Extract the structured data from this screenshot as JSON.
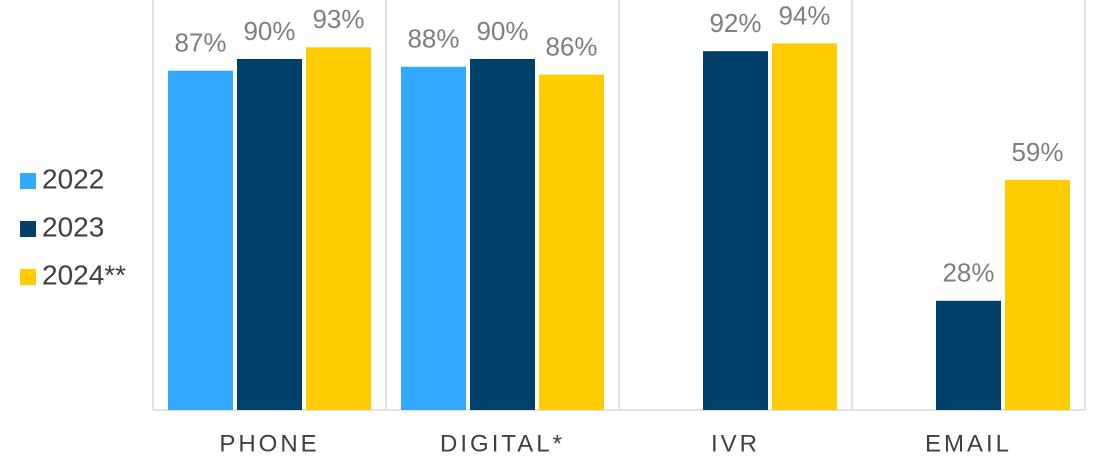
{
  "chart_data": {
    "type": "bar",
    "categories": [
      "PHONE",
      "DIGITAL*",
      "IVR",
      "EMAIL"
    ],
    "series": [
      {
        "name": "2022",
        "color": "#33a8ff",
        "values": [
          87,
          88,
          null,
          null
        ],
        "value_labels": [
          "87%",
          "88%",
          null,
          null
        ]
      },
      {
        "name": "2023",
        "color": "#00406b",
        "values": [
          90,
          90,
          92,
          28
        ],
        "value_labels": [
          "90%",
          "90%",
          "92%",
          "28%"
        ]
      },
      {
        "name": "2024**",
        "color": "#ffcc00",
        "values": [
          93,
          86,
          94,
          59
        ],
        "value_labels": [
          "93%",
          "86%",
          "94%",
          "59%"
        ]
      }
    ],
    "ylim": [
      0,
      100
    ],
    "legend": "left"
  }
}
